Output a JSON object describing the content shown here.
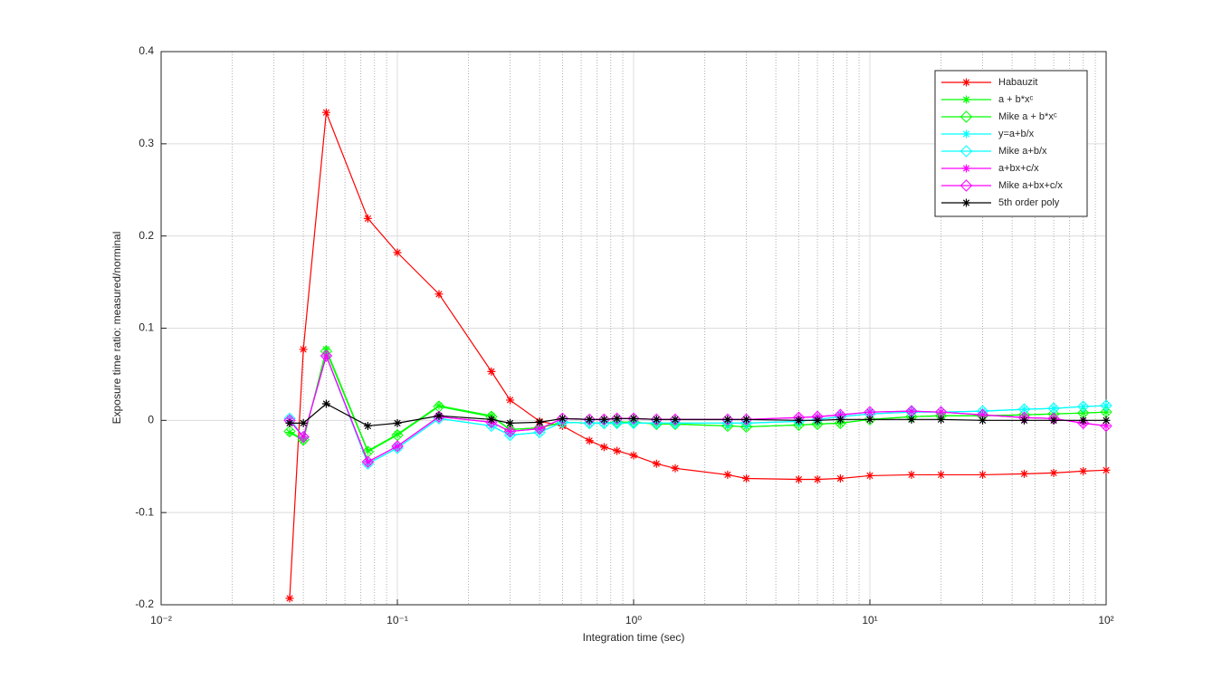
{
  "chart_data": {
    "type": "line",
    "x_label": "Integration time (sec)",
    "y_label": "Exposure time ratio: measured/norminal",
    "x": [
      0.035,
      0.04,
      0.05,
      0.075,
      0.1,
      0.15,
      0.25,
      0.3,
      0.4,
      0.5,
      0.65,
      0.75,
      0.85,
      1,
      1.25,
      1.5,
      2.5,
      3,
      5,
      6,
      7.5,
      10,
      15,
      20,
      30,
      45,
      60,
      80,
      100
    ],
    "xlim": [
      0.01,
      100
    ],
    "log_x": true,
    "xticks": [
      {
        "value": 0.01,
        "label": "10⁻²"
      },
      {
        "value": 0.1,
        "label": "10⁻¹"
      },
      {
        "value": 1,
        "label": "10⁰"
      },
      {
        "value": 10,
        "label": "10¹"
      },
      {
        "value": 100,
        "label": "10²"
      }
    ],
    "ylim": [
      -0.2,
      0.4
    ],
    "yticks": [
      -0.2,
      -0.1,
      0,
      0.1,
      0.2,
      0.3,
      0.4
    ],
    "grid": true,
    "legend": "top-right",
    "series": [
      {
        "name": "Habauzit",
        "color": "#ff0000",
        "marker": "star",
        "values": [
          -0.193,
          0.077,
          0.334,
          0.219,
          0.182,
          0.137,
          0.053,
          0.022,
          -0.001,
          -0.006,
          -0.022,
          -0.029,
          -0.033,
          -0.038,
          -0.047,
          -0.052,
          -0.059,
          -0.063,
          -0.064,
          -0.064,
          -0.063,
          -0.06,
          -0.059,
          -0.059,
          -0.059,
          -0.058,
          -0.057,
          -0.055,
          -0.054
        ]
      },
      {
        "name": "a + b*xᶜ",
        "color": "#00ff00",
        "marker": "star",
        "values": [
          -0.013,
          -0.022,
          0.077,
          -0.033,
          -0.015,
          0.016,
          0.005,
          -0.01,
          -0.008,
          -0.002,
          -0.003,
          -0.003,
          -0.002,
          -0.002,
          -0.004,
          -0.004,
          -0.006,
          -0.007,
          -0.005,
          -0.004,
          -0.003,
          0.001,
          0.004,
          0.005,
          0.005,
          0.006,
          0.007,
          0.008,
          0.009
        ]
      },
      {
        "name": "Mike a + b*xᶜ",
        "color": "#00ff00",
        "marker": "diamond",
        "values": [
          -0.012,
          -0.021,
          0.075,
          -0.034,
          -0.016,
          0.015,
          0.004,
          -0.01,
          -0.008,
          -0.002,
          -0.003,
          -0.003,
          -0.002,
          -0.002,
          -0.004,
          -0.004,
          -0.006,
          -0.007,
          -0.005,
          -0.004,
          -0.003,
          0.001,
          0.004,
          0.005,
          0.005,
          0.006,
          0.007,
          0.008,
          0.009
        ]
      },
      {
        "name": "y=a+b/x",
        "color": "#00ffff",
        "marker": "star",
        "values": [
          0.002,
          -0.018,
          0.07,
          -0.047,
          -0.03,
          0.002,
          -0.006,
          -0.016,
          -0.013,
          -0.002,
          -0.003,
          -0.003,
          -0.003,
          -0.003,
          -0.003,
          -0.003,
          -0.003,
          -0.003,
          -0.001,
          0.001,
          0.004,
          0.007,
          0.009,
          0.009,
          0.01,
          0.012,
          0.013,
          0.015,
          0.016
        ]
      },
      {
        "name": "Mike a+b/x",
        "color": "#00ffff",
        "marker": "diamond",
        "values": [
          0.002,
          -0.018,
          0.07,
          -0.047,
          -0.03,
          0.002,
          -0.006,
          -0.016,
          -0.013,
          -0.002,
          -0.003,
          -0.003,
          -0.003,
          -0.003,
          -0.003,
          -0.003,
          -0.003,
          -0.003,
          -0.001,
          0.001,
          0.004,
          0.007,
          0.009,
          0.009,
          0.01,
          0.012,
          0.013,
          0.015,
          0.016
        ]
      },
      {
        "name": "a+bx+c/x",
        "color": "#ff00ff",
        "marker": "star",
        "values": [
          0,
          -0.018,
          0.07,
          -0.045,
          -0.028,
          0.004,
          -0.002,
          -0.012,
          -0.009,
          0.002,
          0.001,
          0.001,
          0.002,
          0.002,
          0.001,
          0.001,
          0.001,
          0.001,
          0.003,
          0.004,
          0.006,
          0.009,
          0.01,
          0.009,
          0.006,
          0.003,
          0.002,
          -0.003,
          -0.006
        ]
      },
      {
        "name": "Mike a+bx+c/x",
        "color": "#ff00ff",
        "marker": "diamond",
        "values": [
          0,
          -0.018,
          0.07,
          -0.045,
          -0.028,
          0.004,
          -0.002,
          -0.012,
          -0.009,
          0.002,
          0.001,
          0.001,
          0.002,
          0.002,
          0.001,
          0.001,
          0.001,
          0.001,
          0.003,
          0.004,
          0.006,
          0.009,
          0.01,
          0.009,
          0.006,
          0.003,
          0.002,
          -0.003,
          -0.006
        ]
      },
      {
        "name": "5th order poly",
        "color": "#000000",
        "marker": "star",
        "values": [
          -0.003,
          -0.003,
          0.018,
          -0.006,
          -0.003,
          0.005,
          0.001,
          -0.003,
          -0.002,
          0.002,
          0.001,
          0.001,
          0.002,
          0.002,
          0.001,
          0.001,
          0.001,
          0.001,
          0,
          0,
          0.001,
          0.001,
          0.001,
          0.001,
          0,
          0,
          0,
          0,
          0
        ]
      }
    ]
  }
}
